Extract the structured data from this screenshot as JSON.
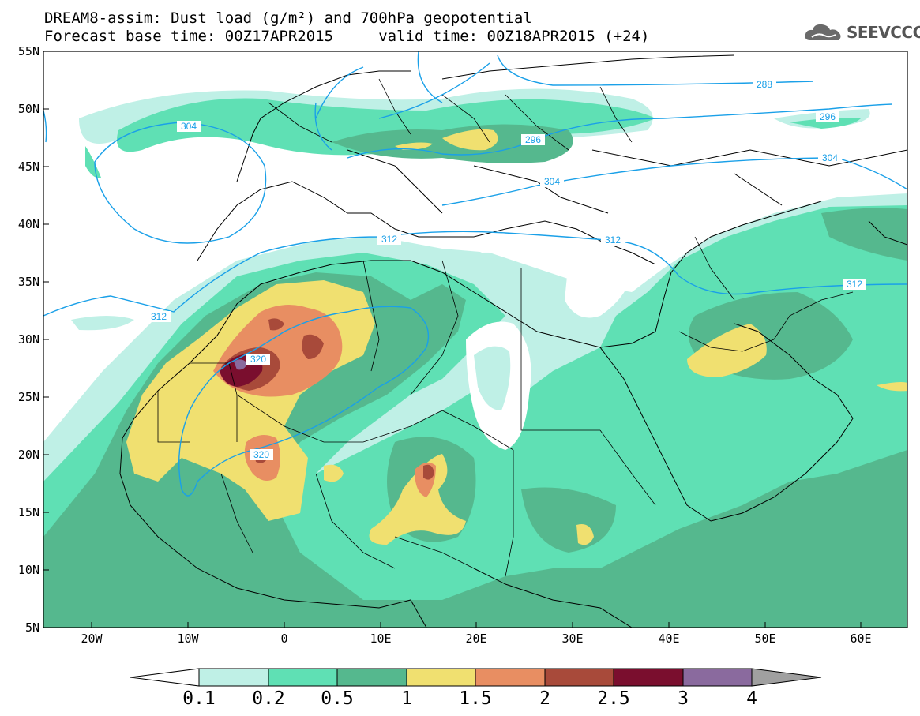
{
  "title": {
    "line1": "DREAM8-assim: Dust load (g/m²) and 700hPa geopotential",
    "line2": "Forecast base time: 00Z17APR2015     valid time: 00Z18APR2015 (+24)"
  },
  "logo": {
    "text": "SEEVCCC",
    "icon": "cloud-icon"
  },
  "axes": {
    "lat_labels": [
      "55N",
      "50N",
      "45N",
      "40N",
      "35N",
      "30N",
      "25N",
      "20N",
      "15N",
      "10N",
      "5N"
    ],
    "lon_labels": [
      "20W",
      "10W",
      "0",
      "10E",
      "20E",
      "30E",
      "40E",
      "50E",
      "60E"
    ]
  },
  "contour_labels": [
    "288",
    "296",
    "296",
    "304",
    "304",
    "304",
    "312",
    "312",
    "312",
    "312",
    "320",
    "320"
  ],
  "colorbar": {
    "ticks": [
      "0.1",
      "0.2",
      "0.5",
      "1",
      "1.5",
      "2",
      "2.5",
      "3",
      "4"
    ],
    "colors": [
      "#ffffff",
      "#bff0e6",
      "#5fe0b4",
      "#55b88e",
      "#f0e070",
      "#e88e62",
      "#a84a3a",
      "#7a0e2e",
      "#8a6a9e",
      "#a0a0a0"
    ]
  },
  "colors": {
    "geopotential_contour": "#1aa0e8",
    "coastline": "#000000"
  }
}
